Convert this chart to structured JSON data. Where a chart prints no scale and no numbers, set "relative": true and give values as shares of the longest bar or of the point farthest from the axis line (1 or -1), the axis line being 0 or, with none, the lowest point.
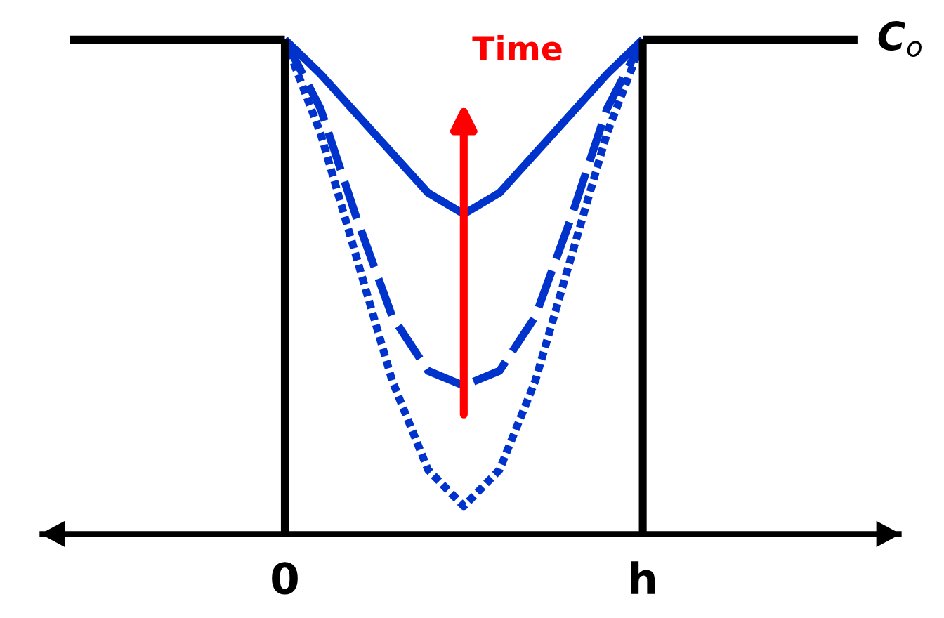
{
  "chart_data": {
    "type": "line",
    "relative": true,
    "categories": [
      null,
      null,
      null,
      null,
      null,
      null,
      "0",
      null,
      null,
      null,
      null,
      null,
      null,
      null,
      null,
      null,
      "h",
      null,
      null,
      null,
      null,
      null,
      null
    ],
    "tick_labels": "x",
    "grid": false,
    "marker": "none",
    "ref_lines": [
      {
        "axis": "x",
        "value": "0",
        "color": "#000000",
        "line_style": "solid"
      },
      {
        "axis": "x",
        "value": "h",
        "color": "#000000",
        "line_style": "solid"
      }
    ],
    "series": [
      {
        "color": "#000000",
        "line_style": "solid",
        "values": [
          1,
          1,
          1,
          1,
          1,
          1,
          1,
          null,
          null,
          null,
          null,
          null,
          null,
          null,
          null,
          null,
          null,
          null,
          null,
          null,
          null,
          null,
          null
        ]
      },
      {
        "color": "#000000",
        "line_style": "solid",
        "values": [
          null,
          null,
          null,
          null,
          null,
          null,
          null,
          null,
          null,
          null,
          null,
          null,
          null,
          null,
          null,
          null,
          1,
          1,
          1,
          1,
          1,
          1,
          1
        ]
      },
      {
        "color": "#0033cc",
        "line_style": "solid",
        "values": [
          null,
          null,
          null,
          null,
          null,
          null,
          1,
          0.93,
          0.85,
          0.77,
          0.69,
          0.647,
          0.69,
          0.77,
          0.85,
          0.93,
          1,
          null,
          null,
          null,
          null,
          null,
          null
        ]
      },
      {
        "color": "#0033cc",
        "line_style": "dashed",
        "values": [
          null,
          null,
          null,
          null,
          null,
          null,
          1,
          0.86,
          0.64,
          0.44,
          0.33,
          0.3,
          0.33,
          0.44,
          0.64,
          0.86,
          1,
          null,
          null,
          null,
          null,
          null,
          null
        ]
      },
      {
        "color": "#0033cc",
        "line_style": "dotted",
        "values": [
          null,
          null,
          null,
          null,
          null,
          null,
          1,
          0.81,
          0.56,
          0.31,
          0.13,
          0.056,
          0.13,
          0.31,
          0.56,
          0.81,
          1,
          null,
          null,
          null,
          null,
          null,
          null
        ]
      }
    ],
    "annotations": [
      "Time",
      "C$_{o}$"
    ]
  }
}
